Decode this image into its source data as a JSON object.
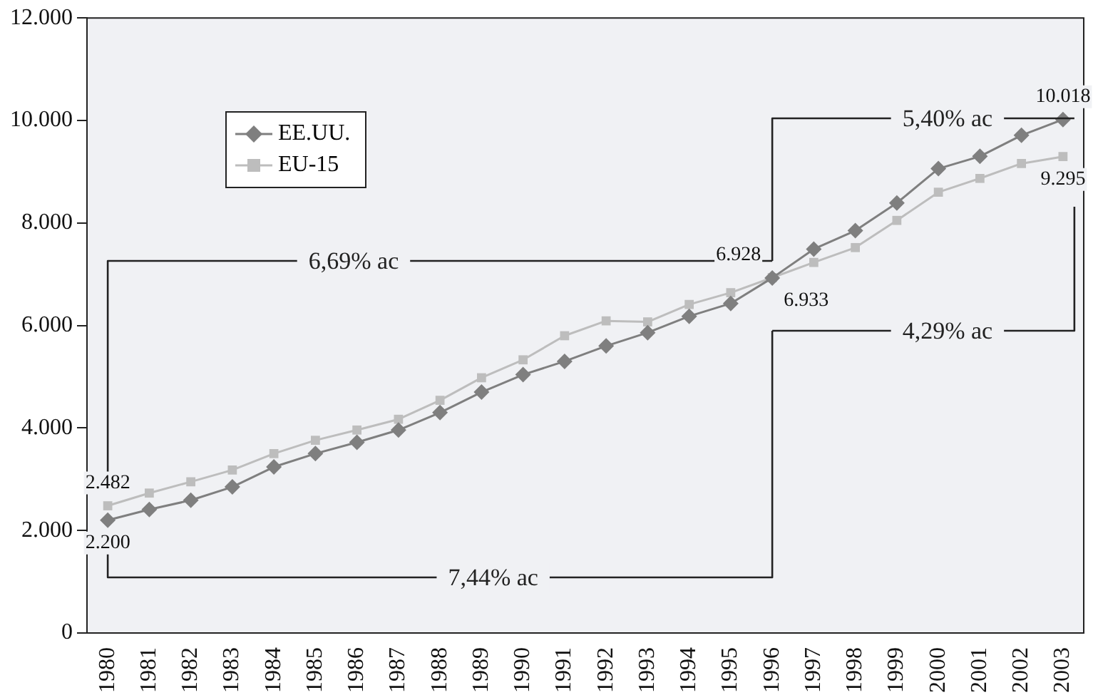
{
  "chart_data": {
    "type": "line",
    "categories": [
      "1980",
      "1981",
      "1982",
      "1983",
      "1984",
      "1985",
      "1986",
      "1987",
      "1988",
      "1989",
      "1990",
      "1991",
      "1992",
      "1993",
      "1994",
      "1995",
      "1996",
      "1997",
      "1998",
      "1999",
      "2000",
      "2001",
      "2002",
      "2003"
    ],
    "series": [
      {
        "name": "EE.UU.",
        "color": "#7f7f7f",
        "marker": "diamond",
        "values": [
          2200,
          2410,
          2590,
          2850,
          3240,
          3500,
          3720,
          3960,
          4300,
          4700,
          5040,
          5300,
          5600,
          5860,
          6180,
          6430,
          6928,
          7490,
          7850,
          8390,
          9060,
          9300,
          9710,
          10018
        ],
        "value_labels": [
          "2.200",
          null,
          null,
          null,
          null,
          null,
          null,
          null,
          null,
          null,
          null,
          null,
          null,
          null,
          null,
          null,
          "6.928",
          null,
          null,
          null,
          null,
          null,
          null,
          "10.018"
        ]
      },
      {
        "name": "EU-15",
        "color": "#bdbdbd",
        "marker": "square",
        "values": [
          2482,
          2730,
          2950,
          3180,
          3500,
          3760,
          3960,
          4170,
          4540,
          4980,
          5330,
          5800,
          6090,
          6070,
          6410,
          6640,
          6933,
          7230,
          7520,
          8050,
          8600,
          8870,
          9160,
          9295
        ],
        "value_labels": [
          "2.482",
          null,
          null,
          null,
          null,
          null,
          null,
          null,
          null,
          null,
          null,
          null,
          null,
          null,
          null,
          null,
          "6.933",
          null,
          null,
          null,
          null,
          null,
          null,
          "9.295"
        ]
      }
    ],
    "ylim": [
      0,
      12000
    ],
    "yticks": [
      0,
      {
        "value": 2000,
        "label": "2.000"
      },
      {
        "value": 4000,
        "label": "4.000"
      },
      {
        "value": 6000,
        "label": "6.000"
      },
      {
        "value": 8000,
        "label": "8.000"
      },
      {
        "value": 10000,
        "label": "10.000"
      },
      {
        "value": 12000,
        "label": "12.000"
      }
    ],
    "legend": "top left",
    "grid": false,
    "annotations": [
      "6,69% ac",
      "5,40% ac",
      "4,29% ac",
      "7,44% ac"
    ]
  }
}
